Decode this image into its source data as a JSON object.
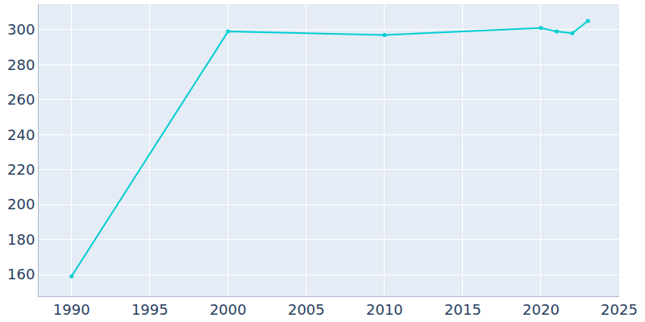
{
  "chart_data": {
    "type": "line",
    "x": [
      1990,
      2000,
      2010,
      2020,
      2021,
      2022,
      2023
    ],
    "values": [
      159,
      299,
      297,
      301,
      299,
      298,
      305
    ],
    "color": "#00ced1",
    "marker": "circle",
    "line_style": "solid",
    "xlim": [
      1987.9,
      2025
    ],
    "xticks": [
      1990,
      1995,
      2000,
      2005,
      2010,
      2015,
      2020,
      2025
    ],
    "ylim": [
      147.6,
      314.7
    ],
    "yticks": [
      160,
      180,
      200,
      220,
      240,
      260,
      280,
      300
    ],
    "grid": true
  }
}
